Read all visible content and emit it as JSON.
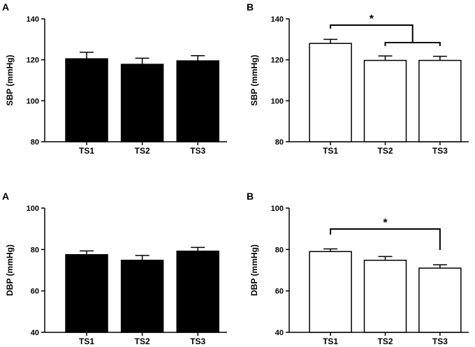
{
  "chart_data": [
    {
      "type": "bar",
      "panel_label": "A",
      "categories": [
        "TS1",
        "TS2",
        "TS3"
      ],
      "values": [
        120.5,
        117.8,
        119.5
      ],
      "errors": [
        3.2,
        3.0,
        2.5
      ],
      "bar_color": "#000000",
      "ylabel": "SBP (mmHg)",
      "ylim": [
        80,
        140
      ],
      "yticks": [
        80,
        100,
        120,
        140
      ],
      "significance": []
    },
    {
      "type": "bar",
      "panel_label": "B",
      "categories": [
        "TS1",
        "TS2",
        "TS3"
      ],
      "values": [
        128.0,
        119.7,
        119.7
      ],
      "errors": [
        2.0,
        2.2,
        2.0
      ],
      "bar_color": "#ffffff",
      "ylabel": "SBP (mmHg)",
      "ylim": [
        80,
        140
      ],
      "yticks": [
        80,
        100,
        120,
        140
      ],
      "significance": [
        {
          "label": "*",
          "type": "one-vs-group",
          "from": 0,
          "to": [
            1,
            2
          ]
        }
      ]
    },
    {
      "type": "bar",
      "panel_label": "A",
      "categories": [
        "TS1",
        "TS2",
        "TS3"
      ],
      "values": [
        77.5,
        74.8,
        79.2
      ],
      "errors": [
        1.8,
        2.3,
        1.8
      ],
      "bar_color": "#000000",
      "ylabel": "DBP (mmHg)",
      "ylim": [
        40,
        100
      ],
      "yticks": [
        40,
        60,
        80,
        100
      ],
      "significance": []
    },
    {
      "type": "bar",
      "panel_label": "B",
      "categories": [
        "TS1",
        "TS2",
        "TS3"
      ],
      "values": [
        79.0,
        74.8,
        71.0
      ],
      "errors": [
        1.3,
        1.8,
        1.6
      ],
      "bar_color": "#ffffff",
      "ylabel": "DBP (mmHg)",
      "ylim": [
        40,
        100
      ],
      "yticks": [
        40,
        60,
        80,
        100
      ],
      "significance": [
        {
          "label": "*",
          "type": "pair",
          "from": 0,
          "to": [
            2
          ]
        }
      ]
    }
  ]
}
